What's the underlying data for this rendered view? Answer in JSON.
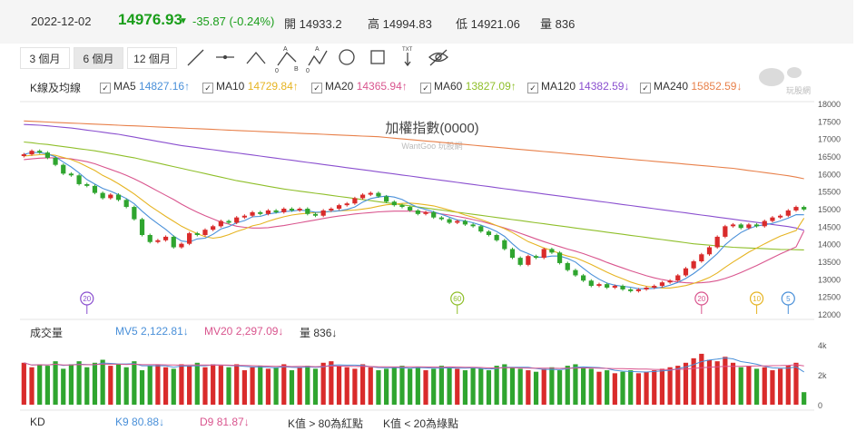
{
  "quote": {
    "date": "2022-12-02",
    "price": "14976.93",
    "arrow": "▼",
    "change": "-35.87 (-0.24%)",
    "open": "開 14933.2",
    "high": "高 14994.83",
    "low": "低 14921.06",
    "volume": "量 836"
  },
  "toolbar": {
    "ranges": [
      "3 個月",
      "6 個月",
      "12 個月"
    ],
    "active_range": "6 個月",
    "tools": [
      "line-tool-icon",
      "horizontal-line-tool-icon",
      "wave-tool-icon",
      "abc-pattern-icon",
      "abcd-pattern-icon",
      "circle-tool-icon",
      "rectangle-tool-icon",
      "text-tool-icon",
      "hide-drawings-icon"
    ]
  },
  "watermark": {
    "logo_text": "玩股網",
    "subtitle": "WantGoo 玩股網"
  },
  "legend": {
    "label": "K線及均線",
    "items": [
      {
        "name": "MA5",
        "value": "14827.16",
        "arrow": "↑",
        "color": "#4a90d9"
      },
      {
        "name": "MA10",
        "value": "14729.84",
        "arrow": "↑",
        "color": "#e6b422"
      },
      {
        "name": "MA20",
        "value": "14365.94",
        "arrow": "↑",
        "color": "#d9558e"
      },
      {
        "name": "MA60",
        "value": "13827.09",
        "arrow": "↑",
        "color": "#8fbf2a"
      },
      {
        "name": "MA120",
        "value": "14382.59",
        "arrow": "↓",
        "color": "#8a4fcf"
      },
      {
        "name": "MA240",
        "value": "15852.59",
        "arrow": "↓",
        "color": "#e8804a"
      }
    ]
  },
  "chart_data": {
    "type": "candlestick",
    "title": "加權指數(0000)",
    "price_axis": {
      "ylim": [
        12000,
        18000
      ],
      "ticks": [
        18000,
        17500,
        17000,
        16500,
        16000,
        15500,
        15000,
        14500,
        14000,
        13500,
        13000,
        12500,
        12000
      ]
    },
    "up_color": "#d92b2b",
    "down_color": "#2fa52f",
    "closes": [
      16550,
      16650,
      16600,
      16450,
      16250,
      16000,
      15950,
      15700,
      15650,
      15450,
      15300,
      15400,
      15250,
      15050,
      14700,
      14250,
      14050,
      14100,
      14200,
      13900,
      14000,
      14300,
      14250,
      14400,
      14500,
      14650,
      14600,
      14750,
      14800,
      14900,
      14850,
      14950,
      14900,
      15000,
      14950,
      15000,
      14850,
      14800,
      14950,
      15000,
      15100,
      15150,
      15300,
      15400,
      15450,
      15350,
      15200,
      15100,
      15050,
      14950,
      14850,
      14900,
      14750,
      14700,
      14600,
      14650,
      14550,
      14500,
      14350,
      14250,
      14100,
      13850,
      13600,
      13400,
      13650,
      13600,
      13850,
      13750,
      13450,
      13250,
      13100,
      12950,
      12800,
      12850,
      12750,
      12800,
      12700,
      12650,
      12700,
      12750,
      12800,
      12900,
      12950,
      13100,
      13300,
      13500,
      13700,
      13900,
      14200,
      14500,
      14550,
      14450,
      14550,
      14500,
      14650,
      14750,
      14800,
      14950,
      15050,
      14976.93
    ],
    "ma_series": [
      {
        "name": "MA5",
        "color": "#4a90d9",
        "values": [
          16550,
          16600,
          16600,
          16560,
          16480,
          16330,
          16190,
          16020,
          15830,
          15700,
          15580,
          15500,
          15400,
          15290,
          15140,
          14930,
          14740,
          14570,
          14410,
          14220,
          14080,
          14050,
          14140,
          14160,
          14270,
          14420,
          14490,
          14600,
          14660,
          14770,
          14780,
          14850,
          14880,
          14920,
          14930,
          14960,
          14940,
          14900,
          14910,
          14920,
          14940,
          14980,
          15050,
          15190,
          15290,
          15330,
          15360,
          15330,
          15260,
          15140,
          15040,
          14980,
          14910,
          14840,
          14760,
          14680,
          14650,
          14600,
          14530,
          14450,
          14350,
          14210,
          14000,
          13810,
          13720,
          13620,
          13620,
          13650,
          13650,
          13580,
          13480,
          13300,
          13130,
          12990,
          12880,
          12820,
          12790,
          12760,
          12720,
          12720,
          12730,
          12760,
          12820,
          12900,
          13010,
          13150,
          13320,
          13520,
          13720,
          13970,
          14160,
          14320,
          14430,
          14510,
          14540,
          14580,
          14650,
          14730,
          14830,
          14827.16
        ]
      },
      {
        "name": "MA10",
        "color": "#e6b422",
        "values": [
          16500,
          16520,
          16540,
          16550,
          16520,
          16460,
          16400,
          16310,
          16200,
          16090,
          15950,
          15840,
          15710,
          15570,
          15420,
          15250,
          15080,
          14930,
          14780,
          14640,
          14500,
          14390,
          14290,
          14200,
          14160,
          14190,
          14260,
          14350,
          14420,
          14510,
          14560,
          14640,
          14710,
          14770,
          14820,
          14850,
          14870,
          14890,
          14900,
          14920,
          14940,
          14950,
          14960,
          14990,
          15020,
          15070,
          15110,
          15130,
          15150,
          15160,
          15140,
          15110,
          15080,
          15020,
          14960,
          14900,
          14820,
          14760,
          14690,
          14610,
          14520,
          14430,
          14320,
          14190,
          14060,
          13970,
          13880,
          13810,
          13720,
          13650,
          13600,
          13510,
          13410,
          13300,
          13190,
          13090,
          13000,
          12910,
          12840,
          12790,
          12760,
          12740,
          12740,
          12770,
          12810,
          12870,
          12950,
          13040,
          13170,
          13330,
          13480,
          13620,
          13760,
          13880,
          14000,
          14110,
          14220,
          14300,
          14380,
          14729.84
        ]
      },
      {
        "name": "MA20",
        "color": "#d9558e",
        "values": [
          16400,
          16420,
          16440,
          16450,
          16450,
          16440,
          16420,
          16380,
          16340,
          16280,
          16200,
          16120,
          16040,
          15950,
          15850,
          15740,
          15620,
          15500,
          15380,
          15260,
          15130,
          15010,
          14900,
          14800,
          14710,
          14620,
          14560,
          14500,
          14470,
          14450,
          14450,
          14460,
          14490,
          14520,
          14560,
          14600,
          14640,
          14680,
          14720,
          14760,
          14790,
          14820,
          14850,
          14870,
          14890,
          14910,
          14920,
          14930,
          14930,
          14930,
          14920,
          14900,
          14880,
          14850,
          14820,
          14780,
          14740,
          14690,
          14640,
          14580,
          14520,
          14450,
          14380,
          14300,
          14220,
          14140,
          14060,
          13990,
          13920,
          13850,
          13790,
          13720,
          13640,
          13560,
          13470,
          13390,
          13310,
          13230,
          13160,
          13090,
          13030,
          12980,
          12940,
          12910,
          12890,
          12880,
          12890,
          12910,
          12950,
          13010,
          13090,
          13180,
          13280,
          13380,
          13490,
          13600,
          13710,
          13810,
          13910,
          14365.94
        ]
      },
      {
        "name": "MA60",
        "color": "#8fbf2a",
        "values": [
          16900,
          16880,
          16850,
          16830,
          16800,
          16770,
          16740,
          16710,
          16680,
          16650,
          16610,
          16570,
          16530,
          16490,
          16450,
          16400,
          16350,
          16300,
          16250,
          16200,
          16150,
          16100,
          16050,
          16000,
          15950,
          15900,
          15850,
          15800,
          15760,
          15720,
          15680,
          15640,
          15600,
          15560,
          15530,
          15500,
          15470,
          15440,
          15410,
          15380,
          15350,
          15320,
          15290,
          15260,
          15230,
          15200,
          15170,
          15140,
          15110,
          15080,
          15050,
          15020,
          14990,
          14960,
          14930,
          14900,
          14870,
          14840,
          14810,
          14780,
          14750,
          14720,
          14690,
          14660,
          14630,
          14600,
          14570,
          14540,
          14510,
          14480,
          14450,
          14420,
          14390,
          14360,
          14330,
          14300,
          14270,
          14240,
          14210,
          14180,
          14150,
          14120,
          14090,
          14060,
          14030,
          14000,
          13980,
          13960,
          13940,
          13920,
          13900,
          13890,
          13880,
          13870,
          13860,
          13850,
          13840,
          13835,
          13830,
          13827.09
        ]
      },
      {
        "name": "MA120",
        "color": "#8a4fcf",
        "values": [
          17400,
          17390,
          17380,
          17360,
          17340,
          17320,
          17300,
          17270,
          17240,
          17210,
          17180,
          17150,
          17120,
          17080,
          17040,
          17000,
          16960,
          16920,
          16880,
          16840,
          16800,
          16770,
          16740,
          16710,
          16680,
          16650,
          16620,
          16590,
          16560,
          16530,
          16500,
          16470,
          16440,
          16410,
          16380,
          16350,
          16320,
          16290,
          16260,
          16230,
          16200,
          16170,
          16140,
          16110,
          16080,
          16050,
          16020,
          15990,
          15960,
          15930,
          15900,
          15870,
          15840,
          15810,
          15780,
          15750,
          15720,
          15690,
          15660,
          15630,
          15600,
          15570,
          15540,
          15510,
          15480,
          15450,
          15420,
          15390,
          15360,
          15330,
          15300,
          15270,
          15240,
          15210,
          15180,
          15150,
          15120,
          15090,
          15060,
          15030,
          15000,
          14970,
          14940,
          14910,
          14880,
          14850,
          14820,
          14790,
          14760,
          14730,
          14700,
          14670,
          14640,
          14610,
          14580,
          14550,
          14520,
          14490,
          14450,
          14382.59
        ]
      },
      {
        "name": "MA240",
        "color": "#e8804a",
        "values": [
          17500,
          17490,
          17480,
          17470,
          17460,
          17450,
          17440,
          17430,
          17420,
          17410,
          17400,
          17390,
          17380,
          17370,
          17360,
          17350,
          17340,
          17330,
          17320,
          17310,
          17300,
          17290,
          17280,
          17270,
          17260,
          17250,
          17240,
          17230,
          17220,
          17210,
          17200,
          17190,
          17180,
          17170,
          17160,
          17150,
          17140,
          17130,
          17120,
          17110,
          17100,
          17090,
          17080,
          17070,
          17060,
          17050,
          17030,
          17010,
          16990,
          16970,
          16950,
          16930,
          16910,
          16890,
          16870,
          16850,
          16830,
          16810,
          16790,
          16770,
          16750,
          16730,
          16710,
          16690,
          16670,
          16650,
          16630,
          16610,
          16590,
          16570,
          16550,
          16530,
          16510,
          16490,
          16470,
          16450,
          16430,
          16410,
          16390,
          16370,
          16350,
          16330,
          16310,
          16290,
          16270,
          16250,
          16230,
          16210,
          16190,
          16170,
          16150,
          16120,
          16090,
          16060,
          16030,
          16000,
          15970,
          15940,
          15900,
          15852.59
        ]
      }
    ],
    "markers": [
      {
        "label": "20",
        "index": 14,
        "color": "#8a4fcf"
      },
      {
        "label": "60",
        "index": 98,
        "color": "#8fbf2a"
      },
      {
        "label": "20",
        "index": 154,
        "color": "#d9558e"
      },
      {
        "label": "10",
        "index": 168,
        "color": "#e6b422"
      },
      {
        "label": "5",
        "index": 175,
        "color": "#4a90d9"
      }
    ],
    "volume_panel": {
      "label": "成交量",
      "mv5": {
        "label": "MV5",
        "value": "2,122.81",
        "arrow": "↓",
        "color": "#4a90d9"
      },
      "mv20": {
        "label": "MV20",
        "value": "2,297.09",
        "arrow": "↓",
        "color": "#d9558e"
      },
      "vol": {
        "label": "量",
        "value": "836",
        "arrow": "↓"
      },
      "axis_ticks": [
        "4k",
        "2k",
        "0"
      ],
      "ylim": [
        0,
        4000
      ],
      "values": [
        2800,
        2500,
        2700,
        2600,
        2900,
        2400,
        2700,
        2900,
        2500,
        2800,
        3000,
        2600,
        2700,
        2500,
        2900,
        2300,
        2600,
        2700,
        2500,
        2400,
        2700,
        2600,
        2800,
        2500,
        2700,
        2600,
        2500,
        2700,
        2300,
        2500,
        2600,
        2400,
        2500,
        2700,
        2300,
        2500,
        2600,
        2400,
        2800,
        2900,
        2600,
        2500,
        2400,
        2700,
        2500,
        2300,
        2400,
        2500,
        2600,
        2400,
        2500,
        2300,
        2400,
        2600,
        2500,
        2400,
        2300,
        2500,
        2400,
        2300,
        2600,
        2700,
        2500,
        2400,
        2300,
        2200,
        2400,
        2500,
        2300,
        2600,
        2700,
        2500,
        2400,
        2200,
        2300,
        2100,
        2200,
        2300,
        2100,
        2200,
        2300,
        2400,
        2500,
        2600,
        2800,
        3100,
        3400,
        3000,
        2900,
        3200,
        2800,
        2500,
        2600,
        2400,
        2500,
        2300,
        2400,
        2600,
        2800,
        836
      ]
    },
    "kd_panel": {
      "label": "KD",
      "k9": {
        "label": "K9",
        "value": "80.88",
        "arrow": "↓",
        "color": "#4a90d9"
      },
      "d9": {
        "label": "D9",
        "value": "81.87",
        "arrow": "↓",
        "color": "#d9558e"
      },
      "note1": "K值 > 80為紅點",
      "note2": "K值 < 20為綠點"
    }
  }
}
